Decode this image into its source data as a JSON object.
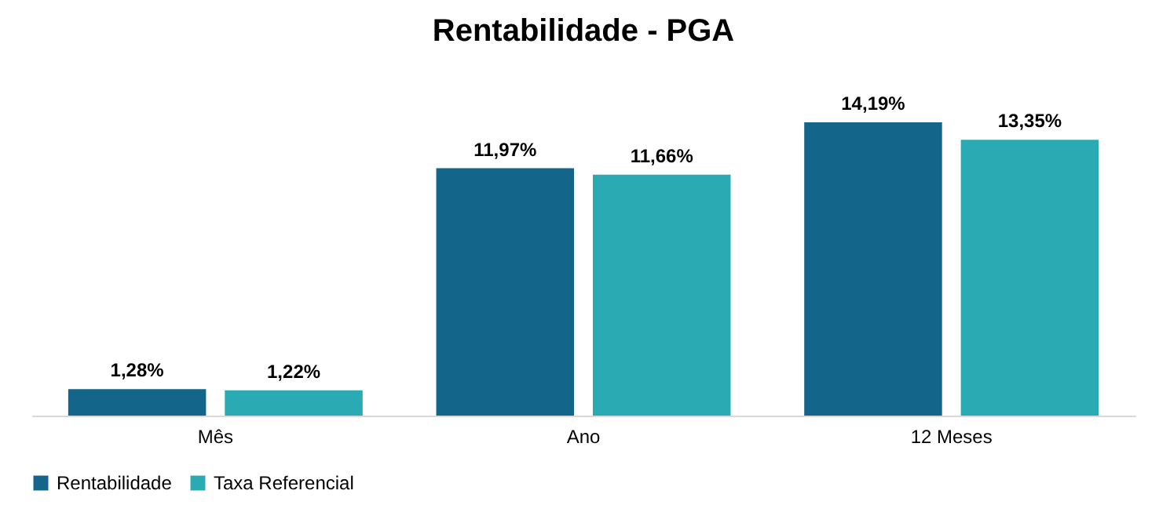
{
  "chart_data": {
    "type": "bar",
    "title": "Rentabilidade - PGA",
    "categories": [
      "Mês",
      "Ano",
      "12 Meses"
    ],
    "series": [
      {
        "name": "Rentabilidade",
        "color": "#136689",
        "values": [
          1.28,
          11.97,
          14.19
        ],
        "value_labels": [
          "1,28%",
          "11,97%",
          "14,19%"
        ]
      },
      {
        "name": "Taxa Referencial",
        "color": "#2aabb3",
        "values": [
          1.22,
          11.66,
          13.35
        ],
        "value_labels": [
          "1,22%",
          "11,66%",
          "13,35%"
        ]
      }
    ],
    "legend": "bottom",
    "grid": false
  }
}
